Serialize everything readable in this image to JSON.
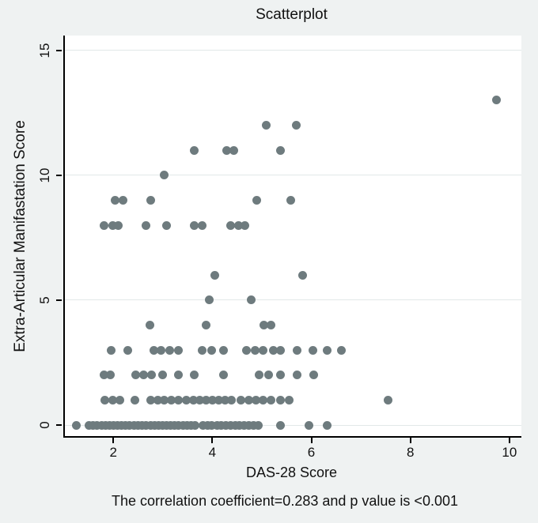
{
  "title": "Scatterplot",
  "colors": {
    "dot": "#6e7b7e",
    "background": "#eff2f2",
    "plot_background": "#ffffff",
    "gridline": "#e2e8e8",
    "axis": "#000000"
  },
  "chart_data": {
    "type": "scatter",
    "title": "Scatterplot",
    "xlabel": "DAS-28 Score",
    "ylabel": "Extra-Articular Manifastation Score",
    "annotation": "The correlation coefficient=0.283 and p value is <0.001",
    "xlim": [
      0.99,
      10.21
    ],
    "ylim": [
      -0.44,
      15.59
    ],
    "x_ticks": [
      2,
      4,
      6,
      8,
      10
    ],
    "y_ticks": [
      0,
      5,
      10,
      15
    ],
    "grid": "horizontal",
    "legend": "none",
    "points": [
      [
        9.7,
        13
      ],
      [
        5.05,
        12
      ],
      [
        5.66,
        12
      ],
      [
        3.61,
        11
      ],
      [
        4.25,
        11
      ],
      [
        4.4,
        11
      ],
      [
        5.35,
        11
      ],
      [
        3.0,
        10
      ],
      [
        2.0,
        9
      ],
      [
        2.17,
        9
      ],
      [
        2.73,
        9
      ],
      [
        4.86,
        9
      ],
      [
        5.55,
        9
      ],
      [
        1.78,
        8
      ],
      [
        1.95,
        8
      ],
      [
        2.07,
        8
      ],
      [
        2.63,
        8
      ],
      [
        3.05,
        8
      ],
      [
        3.61,
        8
      ],
      [
        3.76,
        8
      ],
      [
        4.33,
        8
      ],
      [
        4.5,
        8
      ],
      [
        4.62,
        8
      ],
      [
        4.02,
        6
      ],
      [
        5.79,
        6
      ],
      [
        3.9,
        5
      ],
      [
        4.76,
        5
      ],
      [
        2.71,
        4
      ],
      [
        3.84,
        4
      ],
      [
        5.01,
        4
      ],
      [
        5.16,
        4
      ],
      [
        1.93,
        3
      ],
      [
        2.26,
        3
      ],
      [
        2.78,
        3
      ],
      [
        2.93,
        3
      ],
      [
        3.1,
        3
      ],
      [
        3.28,
        3
      ],
      [
        3.76,
        3
      ],
      [
        3.96,
        3
      ],
      [
        4.19,
        3
      ],
      [
        4.65,
        3
      ],
      [
        4.83,
        3
      ],
      [
        5.0,
        3
      ],
      [
        5.2,
        3
      ],
      [
        5.35,
        3
      ],
      [
        5.68,
        3
      ],
      [
        6.0,
        3
      ],
      [
        6.28,
        3
      ],
      [
        6.57,
        3
      ],
      [
        1.78,
        2
      ],
      [
        1.91,
        2
      ],
      [
        2.42,
        2
      ],
      [
        2.58,
        2
      ],
      [
        2.74,
        2
      ],
      [
        2.96,
        2
      ],
      [
        3.29,
        2
      ],
      [
        3.6,
        2
      ],
      [
        4.19,
        2
      ],
      [
        4.92,
        2
      ],
      [
        5.1,
        2
      ],
      [
        5.35,
        2
      ],
      [
        5.68,
        2
      ],
      [
        6.01,
        2
      ],
      [
        1.8,
        1
      ],
      [
        1.95,
        1
      ],
      [
        2.1,
        1
      ],
      [
        2.4,
        1
      ],
      [
        2.72,
        1
      ],
      [
        2.86,
        1
      ],
      [
        3.0,
        1
      ],
      [
        3.14,
        1
      ],
      [
        3.28,
        1
      ],
      [
        3.45,
        1
      ],
      [
        3.58,
        1
      ],
      [
        3.71,
        1
      ],
      [
        3.84,
        1
      ],
      [
        3.97,
        1
      ],
      [
        4.1,
        1
      ],
      [
        4.23,
        1
      ],
      [
        4.36,
        1
      ],
      [
        4.55,
        1
      ],
      [
        4.7,
        1
      ],
      [
        4.85,
        1
      ],
      [
        5.0,
        1
      ],
      [
        5.15,
        1
      ],
      [
        5.35,
        1
      ],
      [
        5.52,
        1
      ],
      [
        7.52,
        1
      ],
      [
        1.22,
        0
      ],
      [
        1.48,
        0
      ],
      [
        1.56,
        0
      ],
      [
        1.64,
        0
      ],
      [
        1.73,
        0
      ],
      [
        1.81,
        0
      ],
      [
        1.89,
        0
      ],
      [
        1.97,
        0
      ],
      [
        2.06,
        0
      ],
      [
        2.14,
        0
      ],
      [
        2.22,
        0
      ],
      [
        2.3,
        0
      ],
      [
        2.39,
        0
      ],
      [
        2.47,
        0
      ],
      [
        2.55,
        0
      ],
      [
        2.63,
        0
      ],
      [
        2.72,
        0
      ],
      [
        2.8,
        0
      ],
      [
        2.88,
        0
      ],
      [
        2.96,
        0
      ],
      [
        3.05,
        0
      ],
      [
        3.13,
        0
      ],
      [
        3.21,
        0
      ],
      [
        3.29,
        0
      ],
      [
        3.38,
        0
      ],
      [
        3.46,
        0
      ],
      [
        3.54,
        0
      ],
      [
        3.62,
        0
      ],
      [
        3.78,
        0
      ],
      [
        3.87,
        0
      ],
      [
        3.96,
        0
      ],
      [
        4.06,
        0
      ],
      [
        4.15,
        0
      ],
      [
        4.24,
        0
      ],
      [
        4.33,
        0
      ],
      [
        4.43,
        0
      ],
      [
        4.52,
        0
      ],
      [
        4.61,
        0
      ],
      [
        4.7,
        0
      ],
      [
        4.8,
        0
      ],
      [
        4.89,
        0
      ],
      [
        5.35,
        0
      ],
      [
        5.92,
        0
      ],
      [
        6.29,
        0
      ]
    ]
  }
}
